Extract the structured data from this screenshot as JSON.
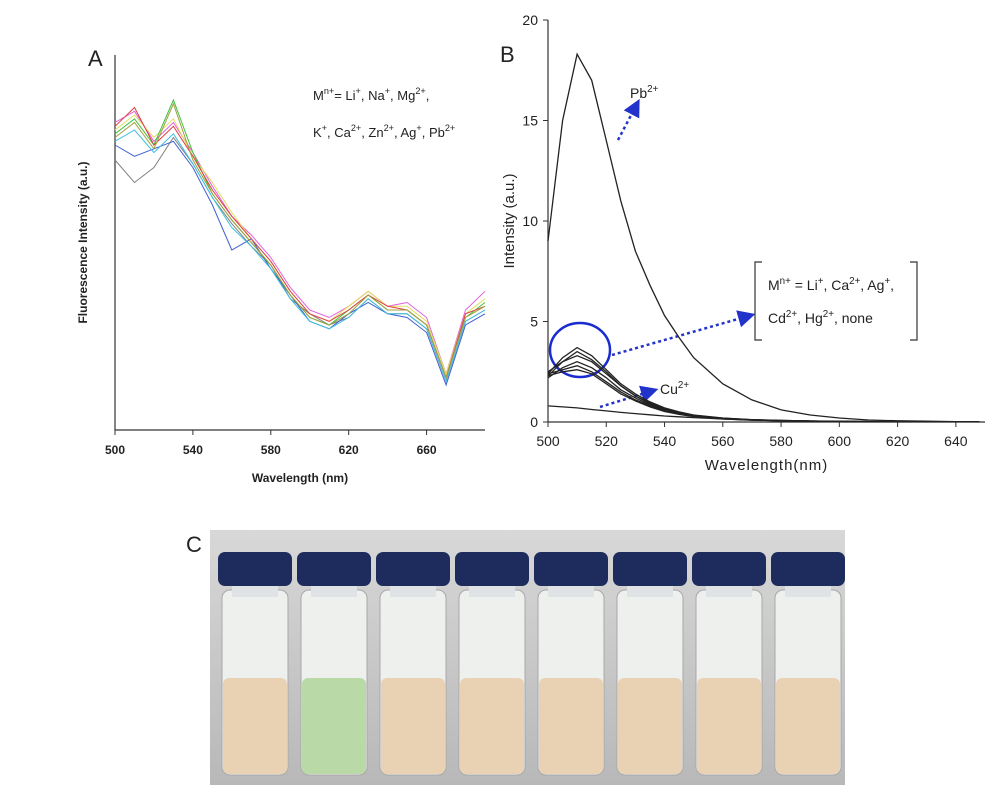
{
  "chart_data": [
    {
      "type": "line",
      "label": "A",
      "x_label": "Wavelength (nm)",
      "y_label": "Fluorescence Intensity (a.u.)",
      "xlim": [
        500,
        690
      ],
      "ylim": [
        0,
        100
      ],
      "xticks": [
        500,
        540,
        580,
        620,
        660
      ],
      "x": [
        500,
        510,
        520,
        530,
        540,
        550,
        560,
        570,
        580,
        590,
        600,
        610,
        620,
        630,
        640,
        650,
        660,
        670,
        680,
        690
      ],
      "series": [
        {
          "color": "#808080",
          "values": [
            72,
            66,
            70,
            78,
            71,
            62,
            55,
            49,
            44,
            35,
            31,
            28,
            30,
            35,
            31,
            31,
            27,
            13,
            29,
            32
          ]
        },
        {
          "color": "#4060d0",
          "values": [
            76,
            73,
            75,
            77,
            70,
            60,
            48,
            51,
            43,
            36,
            29,
            27,
            31,
            34,
            31,
            30,
            26,
            12,
            28,
            31
          ]
        },
        {
          "color": "#e060e0",
          "values": [
            82,
            85,
            77,
            82,
            74,
            65,
            57,
            52,
            46,
            38,
            32,
            30,
            33,
            37,
            33,
            34,
            30,
            15,
            32,
            37
          ]
        },
        {
          "color": "#e0e060",
          "values": [
            80,
            84,
            78,
            83,
            73,
            66,
            58,
            51,
            45,
            37,
            31,
            29,
            33,
            37,
            33,
            33,
            29,
            15,
            31,
            35
          ]
        },
        {
          "color": "#40c040",
          "values": [
            79,
            83,
            76,
            88,
            74,
            63,
            56,
            50,
            44,
            36,
            30,
            28,
            32,
            36,
            32,
            32,
            28,
            14,
            30,
            34
          ]
        },
        {
          "color": "#40c0e0",
          "values": [
            77,
            80,
            74,
            79,
            71,
            62,
            54,
            49,
            43,
            35,
            29,
            27,
            30,
            35,
            31,
            31,
            27,
            13,
            29,
            32
          ]
        },
        {
          "color": "#e04040",
          "values": [
            81,
            86,
            76,
            81,
            73,
            64,
            57,
            51,
            45,
            37,
            31,
            29,
            32,
            36,
            33,
            32,
            28,
            14,
            31,
            33
          ]
        },
        {
          "color": "#a0a040",
          "values": [
            78,
            82,
            75,
            87,
            72,
            63,
            56,
            50,
            44,
            36,
            30,
            28,
            31,
            36,
            32,
            32,
            28,
            14,
            30,
            33
          ]
        }
      ],
      "annotations": [
        {
          "lines": [
            [
              {
                "t": "M",
                "sup": "n+"
              },
              {
                "t": "= Li",
                "sup": "+"
              },
              {
                "t": ", Na",
                "sup": "+"
              },
              {
                "t": ", Mg",
                "sup": "2+"
              },
              {
                "t": ","
              }
            ],
            [
              {
                "t": "K",
                "sup": "+"
              },
              {
                "t": ", Ca",
                "sup": "2+"
              },
              {
                "t": ", Zn",
                "sup": "2+"
              },
              {
                "t": ", Ag",
                "sup": "+"
              },
              {
                "t": ", Pb",
                "sup": "2+"
              }
            ]
          ]
        }
      ]
    },
    {
      "type": "line",
      "label": "B",
      "x_label": "Wavelength(nm)",
      "y_label": "Intensity (a.u.)",
      "xlim": [
        500,
        650
      ],
      "ylim": [
        0,
        20
      ],
      "xticks": [
        500,
        520,
        540,
        560,
        580,
        600,
        620,
        640
      ],
      "yticks": [
        0,
        5,
        10,
        15,
        20
      ],
      "x": [
        500,
        505,
        510,
        515,
        520,
        525,
        530,
        535,
        540,
        545,
        550,
        560,
        570,
        580,
        590,
        600,
        610,
        620,
        630,
        640,
        648
      ],
      "series": [
        {
          "color": "#222222",
          "values": [
            9,
            15,
            18.3,
            17,
            14,
            11,
            8.5,
            6.8,
            5.3,
            4.2,
            3.2,
            1.9,
            1.1,
            0.6,
            0.35,
            0.2,
            0.1,
            0.06,
            0.04,
            0.02,
            0.01
          ]
        },
        {
          "color": "#222222",
          "values": [
            2.4,
            3.2,
            3.7,
            3.3,
            2.6,
            1.9,
            1.4,
            1.0,
            0.7,
            0.5,
            0.35,
            0.2,
            0.12,
            0.08,
            0.05,
            0.03,
            0.02,
            0.02,
            0.01,
            0.01,
            0.01
          ]
        },
        {
          "color": "#222222",
          "values": [
            2.3,
            3.0,
            3.5,
            3.1,
            2.5,
            1.8,
            1.3,
            0.95,
            0.66,
            0.47,
            0.33,
            0.19,
            0.11,
            0.08,
            0.05,
            0.03,
            0.02,
            0.02,
            0.01,
            0.01,
            0.01
          ]
        },
        {
          "color": "#222222",
          "values": [
            2.5,
            3.0,
            3.3,
            3.0,
            2.4,
            1.8,
            1.3,
            0.9,
            0.65,
            0.45,
            0.32,
            0.18,
            0.11,
            0.07,
            0.05,
            0.03,
            0.02,
            0.02,
            0.01,
            0.01,
            0.01
          ]
        },
        {
          "color": "#222222",
          "values": [
            2.2,
            2.7,
            3.0,
            2.7,
            2.2,
            1.6,
            1.2,
            0.85,
            0.6,
            0.42,
            0.3,
            0.17,
            0.1,
            0.07,
            0.04,
            0.03,
            0.02,
            0.01,
            0.01,
            0.01,
            0.01
          ]
        },
        {
          "color": "#222222",
          "values": [
            2.4,
            2.6,
            2.8,
            2.5,
            2.0,
            1.5,
            1.1,
            0.8,
            0.56,
            0.4,
            0.28,
            0.16,
            0.1,
            0.06,
            0.04,
            0.03,
            0.02,
            0.01,
            0.01,
            0.01,
            0.01
          ]
        },
        {
          "color": "#222222",
          "values": [
            2.3,
            2.5,
            2.6,
            2.4,
            1.9,
            1.4,
            1.05,
            0.75,
            0.52,
            0.38,
            0.27,
            0.15,
            0.09,
            0.06,
            0.04,
            0.03,
            0.02,
            0.01,
            0.01,
            0.01,
            0.01
          ]
        },
        {
          "color": "#222222",
          "values": [
            0.8,
            0.75,
            0.7,
            0.62,
            0.55,
            0.48,
            0.42,
            0.36,
            0.3,
            0.26,
            0.22,
            0.15,
            0.1,
            0.07,
            0.05,
            0.04,
            0.03,
            0.02,
            0.02,
            0.01,
            0.01
          ]
        }
      ],
      "annotations": [
        {
          "lines": [
            [
              {
                "t": "Pb",
                "sup": "2+"
              }
            ]
          ]
        },
        {
          "lines": [
            [
              {
                "t": "M",
                "sup": "n+"
              },
              {
                "t": " = Li",
                "sup": "+"
              },
              {
                "t": ", Ca",
                "sup": "2+"
              },
              {
                "t": ", Ag",
                "sup": "+"
              },
              {
                "t": ","
              }
            ],
            [
              {
                "t": "Cd",
                "sup": "2+"
              },
              {
                "t": ", Hg",
                "sup": "2+"
              },
              {
                "t": ", none"
              }
            ]
          ]
        },
        {
          "lines": [
            [
              {
                "t": "Cu",
                "sup": "2+"
              }
            ]
          ]
        }
      ]
    }
  ],
  "photo": {
    "label": "C"
  }
}
